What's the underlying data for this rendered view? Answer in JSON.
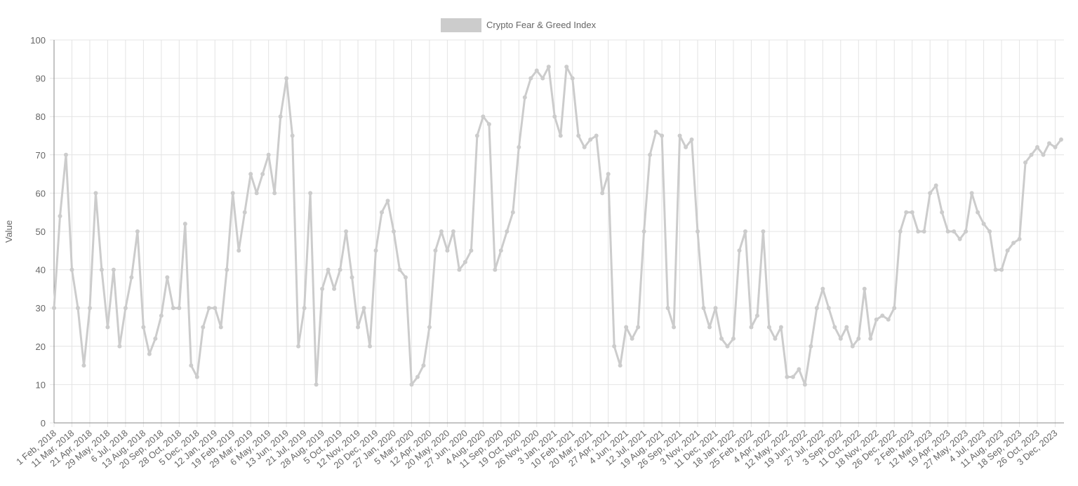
{
  "chart_data": {
    "type": "line",
    "y_label": "Value",
    "categories": [
      "1 Feb, 2018",
      null,
      null,
      "11 Mar, 2018",
      null,
      null,
      "21 Apr, 2018",
      null,
      null,
      "29 May, 2018",
      null,
      null,
      "6 Jul, 2018",
      null,
      null,
      "13 Aug, 2018",
      null,
      null,
      "20 Sep, 2018",
      null,
      null,
      "28 Oct, 2018",
      null,
      null,
      "5 Dec, 2018",
      null,
      null,
      "12 Jan, 2019",
      null,
      null,
      "19 Feb, 2019",
      null,
      null,
      "29 Mar, 2019",
      null,
      null,
      "6 May, 2019",
      null,
      null,
      "13 Jun, 2019",
      null,
      null,
      "21 Jul, 2019",
      null,
      null,
      "28 Aug, 2019",
      null,
      null,
      "5 Oct, 2019",
      null,
      null,
      "12 Nov, 2019",
      null,
      null,
      "20 Dec, 2019",
      null,
      null,
      "27 Jan, 2020",
      null,
      null,
      "5 Mar, 2020",
      null,
      null,
      "12 Apr, 2020",
      null,
      null,
      "20 May, 2020",
      null,
      null,
      "27 Jun, 2020",
      null,
      null,
      "4 Aug, 2020",
      null,
      null,
      "11 Sep, 2020",
      null,
      null,
      "19 Oct, 2020",
      null,
      null,
      "26 Nov, 2020",
      null,
      null,
      "3 Jan, 2021",
      null,
      null,
      "10 Feb, 2021",
      null,
      null,
      "20 Mar, 2021",
      null,
      null,
      "27 Apr, 2021",
      null,
      null,
      "4 Jun, 2021",
      null,
      null,
      "12 Jul, 2021",
      null,
      null,
      "19 Aug, 2021",
      null,
      null,
      "26 Sep, 2021",
      null,
      null,
      "3 Nov, 2021",
      null,
      null,
      "11 Dec, 2021",
      null,
      null,
      "18 Jan, 2022",
      null,
      null,
      "25 Feb, 2022",
      null,
      null,
      "4 Apr, 2022",
      null,
      null,
      "12 May, 2022",
      null,
      null,
      "19 Jun, 2022",
      null,
      null,
      "27 Jul, 2022",
      null,
      null,
      "3 Sep, 2022",
      null,
      null,
      "11 Oct, 2022",
      null,
      null,
      "18 Nov, 2022",
      null,
      null,
      "26 Dec, 2022",
      null,
      null,
      "2 Feb, 2023",
      null,
      null,
      "12 Mar, 2023",
      null,
      null,
      "19 Apr, 2023",
      null,
      null,
      "27 May, 2023",
      null,
      null,
      "4 Jul, 2023",
      null,
      null,
      "11 Aug, 2023",
      null,
      null,
      "18 Sep, 2023",
      null,
      null,
      "26 Oct, 2023",
      null,
      null,
      "3 Dec, 2023",
      null
    ],
    "series": [
      {
        "name": "Crypto Fear & Greed Index",
        "color": "#cccccc",
        "values": [
          30,
          54,
          70,
          40,
          30,
          15,
          30,
          60,
          40,
          25,
          40,
          20,
          30,
          38,
          50,
          25,
          18,
          22,
          28,
          38,
          30,
          30,
          52,
          15,
          12,
          25,
          30,
          30,
          25,
          40,
          60,
          45,
          55,
          65,
          60,
          65,
          70,
          60,
          80,
          90,
          75,
          20,
          30,
          60,
          10,
          35,
          40,
          35,
          40,
          50,
          38,
          25,
          30,
          20,
          45,
          55,
          58,
          50,
          40,
          38,
          10,
          12,
          15,
          25,
          45,
          50,
          45,
          50,
          40,
          42,
          45,
          75,
          80,
          78,
          40,
          45,
          50,
          55,
          72,
          85,
          90,
          92,
          90,
          93,
          80,
          75,
          93,
          90,
          75,
          72,
          74,
          75,
          60,
          65,
          20,
          15,
          25,
          22,
          25,
          50,
          70,
          76,
          75,
          30,
          25,
          75,
          72,
          74,
          50,
          30,
          25,
          30,
          22,
          20,
          22,
          45,
          50,
          25,
          28,
          50,
          25,
          22,
          25,
          12,
          12,
          14,
          10,
          20,
          30,
          35,
          30,
          25,
          22,
          25,
          20,
          22,
          35,
          22,
          27,
          28,
          27,
          30,
          50,
          55,
          55,
          50,
          50,
          60,
          62,
          55,
          50,
          50,
          48,
          50,
          60,
          55,
          52,
          50,
          40,
          40,
          45,
          47,
          48,
          68,
          70,
          72,
          70,
          73,
          72,
          74
        ]
      }
    ],
    "ylim": [
      0,
      100
    ],
    "yticks": [
      0,
      10,
      20,
      30,
      40,
      50,
      60,
      70,
      80,
      90,
      100
    ],
    "grid": true,
    "legend": "top"
  }
}
